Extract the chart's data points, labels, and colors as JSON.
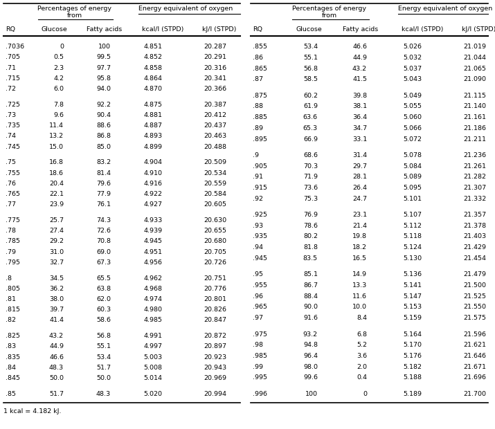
{
  "footnote": "1 kcal = 4.182 kJ.",
  "left_data": [
    [
      ".7036",
      "0",
      "100",
      "4.851",
      "20.287"
    ],
    [
      ".705",
      "0.5",
      "99.5",
      "4.852",
      "20.291"
    ],
    [
      ".71",
      "2.3",
      "97.7",
      "4.858",
      "20.316"
    ],
    [
      ".715",
      "4.2",
      "95.8",
      "4.864",
      "20.341"
    ],
    [
      ".72",
      "6.0",
      "94.0",
      "4.870",
      "20.366"
    ],
    [
      ".725",
      "7.8",
      "92.2",
      "4.875",
      "20.387"
    ],
    [
      ".73",
      "9.6",
      "90.4",
      "4.881",
      "20.412"
    ],
    [
      ".735",
      "11.4",
      "88.6",
      "4.887",
      "20.437"
    ],
    [
      ".74",
      "13.2",
      "86.8",
      "4.893",
      "20.463"
    ],
    [
      ".745",
      "15.0",
      "85.0",
      "4.899",
      "20.488"
    ],
    [
      ".75",
      "16.8",
      "83.2",
      "4.904",
      "20.509"
    ],
    [
      ".755",
      "18.6",
      "81.4",
      "4.910",
      "20.534"
    ],
    [
      ".76",
      "20.4",
      "79.6",
      "4.916",
      "20.559"
    ],
    [
      ".765",
      "22.1",
      "77.9",
      "4.922",
      "20.584"
    ],
    [
      ".77",
      "23.9",
      "76.1",
      "4.927",
      "20.605"
    ],
    [
      ".775",
      "25.7",
      "74.3",
      "4.933",
      "20.630"
    ],
    [
      ".78",
      "27.4",
      "72.6",
      "4.939",
      "20.655"
    ],
    [
      ".785",
      "29.2",
      "70.8",
      "4.945",
      "20.680"
    ],
    [
      ".79",
      "31.0",
      "69.0",
      "4.951",
      "20.705"
    ],
    [
      ".795",
      "32.7",
      "67.3",
      "4.956",
      "20.726"
    ],
    [
      ".8",
      "34.5",
      "65.5",
      "4.962",
      "20.751"
    ],
    [
      ".805",
      "36.2",
      "63.8",
      "4.968",
      "20.776"
    ],
    [
      ".81",
      "38.0",
      "62.0",
      "4.974",
      "20.801"
    ],
    [
      ".815",
      "39.7",
      "60.3",
      "4.980",
      "20.826"
    ],
    [
      ".82",
      "41.4",
      "58.6",
      "4.985",
      "20.847"
    ],
    [
      ".825",
      "43.2",
      "56.8",
      "4.991",
      "20.872"
    ],
    [
      ".83",
      "44.9",
      "55.1",
      "4.997",
      "20.897"
    ],
    [
      ".835",
      "46.6",
      "53.4",
      "5.003",
      "20.923"
    ],
    [
      ".84",
      "48.3",
      "51.7",
      "5.008",
      "20.943"
    ],
    [
      ".845",
      "50.0",
      "50.0",
      "5.014",
      "20.969"
    ],
    [
      ".85",
      "51.7",
      "48.3",
      "5.020",
      "20.994"
    ]
  ],
  "right_data": [
    [
      ".855",
      "53.4",
      "46.6",
      "5.026",
      "21.019"
    ],
    [
      ".86",
      "55.1",
      "44.9",
      "5.032",
      "21.044"
    ],
    [
      ".865",
      "56.8",
      "43.2",
      "5.037",
      "21.065"
    ],
    [
      ".87",
      "58.5",
      "41.5",
      "5.043",
      "21.090"
    ],
    [
      ".875",
      "60.2",
      "39.8",
      "5.049",
      "21.115"
    ],
    [
      ".88",
      "61.9",
      "38.1",
      "5.055",
      "21.140"
    ],
    [
      ".885",
      "63.6",
      "36.4",
      "5.060",
      "21.161"
    ],
    [
      ".89",
      "65.3",
      "34.7",
      "5.066",
      "21.186"
    ],
    [
      ".895",
      "66.9",
      "33.1",
      "5.072",
      "21.211"
    ],
    [
      ".9",
      "68.6",
      "31.4",
      "5.078",
      "21.236"
    ],
    [
      ".905",
      "70.3",
      "29.7",
      "5.084",
      "21.261"
    ],
    [
      ".91",
      "71.9",
      "28.1",
      "5.089",
      "21.282"
    ],
    [
      ".915",
      "73.6",
      "26.4",
      "5.095",
      "21.307"
    ],
    [
      ".92",
      "75.3",
      "24.7",
      "5.101",
      "21.332"
    ],
    [
      ".925",
      "76.9",
      "23.1",
      "5.107",
      "21.357"
    ],
    [
      ".93",
      "78.6",
      "21.4",
      "5.112",
      "21.378"
    ],
    [
      ".935",
      "80.2",
      "19.8",
      "5.118",
      "21.403"
    ],
    [
      ".94",
      "81.8",
      "18.2",
      "5.124",
      "21.429"
    ],
    [
      ".945",
      "83.5",
      "16.5",
      "5.130",
      "21.454"
    ],
    [
      ".95",
      "85.1",
      "14.9",
      "5.136",
      "21.479"
    ],
    [
      ".955",
      "86.7",
      "13.3",
      "5.141",
      "21.500"
    ],
    [
      ".96",
      "88.4",
      "11.6",
      "5.147",
      "21.525"
    ],
    [
      ".965",
      "90.0",
      "10.0",
      "5.153",
      "21.550"
    ],
    [
      ".97",
      "91.6",
      "8.4",
      "5.159",
      "21.575"
    ],
    [
      ".975",
      "93.2",
      "6.8",
      "5.164",
      "21.596"
    ],
    [
      ".98",
      "94.8",
      "5.2",
      "5.170",
      "21.621"
    ],
    [
      ".985",
      "96.4",
      "3.6",
      "5.176",
      "21.646"
    ],
    [
      ".99",
      "98.0",
      "2.0",
      "5.182",
      "21.671"
    ],
    [
      ".995",
      "99.6",
      "0.4",
      "5.188",
      "21.696"
    ],
    [
      ".996",
      "100",
      "0",
      "5.189",
      "21.700"
    ]
  ],
  "group_breaks_left": [
    5,
    10,
    15,
    20,
    25,
    30
  ],
  "group_breaks_right": [
    4,
    9,
    14,
    19,
    24,
    29
  ],
  "bg_color": "#ffffff",
  "text_color": "#000000",
  "font_size": 6.8,
  "lc": [
    0.013,
    0.085,
    0.155,
    0.245,
    0.33
  ],
  "rc": [
    0.51,
    0.59,
    0.66,
    0.76,
    0.86
  ]
}
